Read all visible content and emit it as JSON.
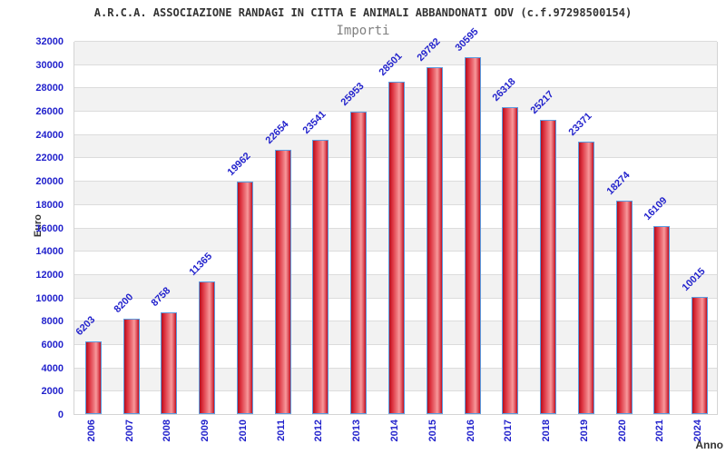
{
  "header": {
    "title": "A.R.C.A. ASSOCIAZIONE RANDAGI IN CITTA E ANIMALI ABBANDONATI ODV (c.f.97298500154)",
    "subtitle": "Importi"
  },
  "chart_data": {
    "type": "bar",
    "title": "A.R.C.A. ASSOCIAZIONE RANDAGI IN CITTA E ANIMALI ABBANDONATI ODV (c.f.97298500154)",
    "subtitle": "Importi",
    "xlabel": "Anno",
    "ylabel": "Euro",
    "categories": [
      "2006",
      "2007",
      "2008",
      "2009",
      "2010",
      "2011",
      "2012",
      "2013",
      "2014",
      "2015",
      "2016",
      "2017",
      "2018",
      "2019",
      "2020",
      "2021",
      "2024"
    ],
    "values": [
      6203,
      8200,
      8758,
      11365,
      19962,
      22654,
      23541,
      25953,
      28501,
      29782,
      30595,
      26318,
      25217,
      23371,
      18274,
      16109,
      10015
    ],
    "ylim": [
      0,
      32000
    ],
    "ytick_step": 2000,
    "legend": "none",
    "grid": "horizontal-bands",
    "colors": {
      "bar_edge_dark": "#c00d1e",
      "bar_center_light": "#f7999c",
      "bar_border": "#5b9ce0",
      "tick_label": "#2222cc",
      "value_label": "#2222cc",
      "band_gray": "#f2f2f2",
      "band_white": "#ffffff",
      "gridline": "#dcdcdc",
      "title_color": "#333333",
      "subtitle_color": "#808080",
      "axis_label_color": "#333333"
    }
  }
}
